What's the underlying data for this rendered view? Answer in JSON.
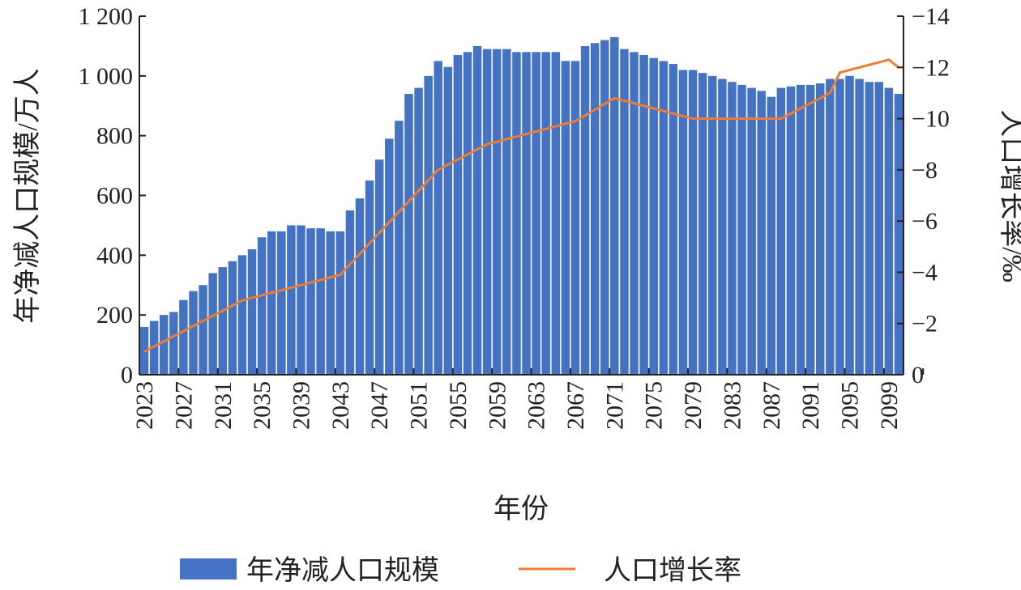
{
  "chart_data": {
    "type": "bar+line",
    "xlabel": "年份",
    "ylabel_left": "年净减人口规模/万人",
    "ylabel_right": "人口增长率/‰",
    "ylim_left": [
      0,
      1200
    ],
    "ylim_right": [
      0,
      -14
    ],
    "yticks_left": [
      "0",
      "200",
      "400",
      "600",
      "800",
      "1 000",
      "1 200"
    ],
    "yticks_right": [
      "0",
      "−2",
      "−4",
      "−6",
      "−8",
      "−10",
      "−12",
      "−14"
    ],
    "xticks": [
      "2023",
      "2027",
      "2031",
      "2035",
      "2039",
      "2043",
      "2047",
      "2051",
      "2055",
      "2059",
      "2063",
      "2067",
      "2071",
      "2075",
      "2079",
      "2083",
      "2087",
      "2091",
      "2095",
      "2099"
    ],
    "legend": {
      "placement": "bottom",
      "bar_label": "年净减人口规模",
      "line_label": "人口增长率"
    },
    "colors": {
      "bar": "#4472c4",
      "line": "#ed7d31"
    },
    "bar_series": {
      "name": "年净减人口规模",
      "x_start": 2023,
      "values": [
        160,
        180,
        200,
        210,
        250,
        280,
        300,
        340,
        360,
        380,
        400,
        420,
        460,
        480,
        480,
        500,
        500,
        490,
        490,
        480,
        480,
        550,
        590,
        650,
        720,
        790,
        850,
        940,
        960,
        1000,
        1050,
        1030,
        1070,
        1080,
        1100,
        1090,
        1090,
        1090,
        1080,
        1080,
        1080,
        1080,
        1080,
        1050,
        1050,
        1100,
        1110,
        1120,
        1130,
        1090,
        1080,
        1070,
        1060,
        1050,
        1040,
        1020,
        1020,
        1010,
        1000,
        990,
        980,
        970,
        960,
        950,
        930,
        960,
        965,
        970,
        970,
        975,
        990,
        990,
        1000,
        990,
        980,
        980,
        960,
        940
      ]
    },
    "line_series": {
      "name": "人口增长率",
      "x": [
        2023,
        2033,
        2043,
        2053,
        2058,
        2063,
        2067,
        2071,
        2079,
        2088,
        2093,
        2094,
        2099,
        2100
      ],
      "y": [
        -0.9,
        -2.9,
        -3.9,
        -8.0,
        -9.0,
        -9.5,
        -9.9,
        -10.8,
        -10.0,
        -10.0,
        -11.0,
        -11.8,
        -12.3,
        -12.0
      ]
    }
  }
}
